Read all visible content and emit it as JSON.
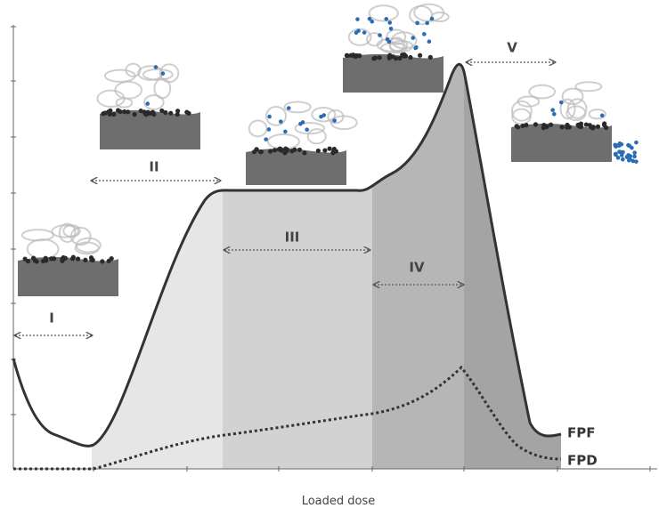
{
  "phases": [
    "I",
    "II",
    "III",
    "IV",
    "V"
  ],
  "curves": {
    "fpf": "FPF",
    "fpd": "FPD"
  },
  "x_axis_label": "Loaded dose"
}
